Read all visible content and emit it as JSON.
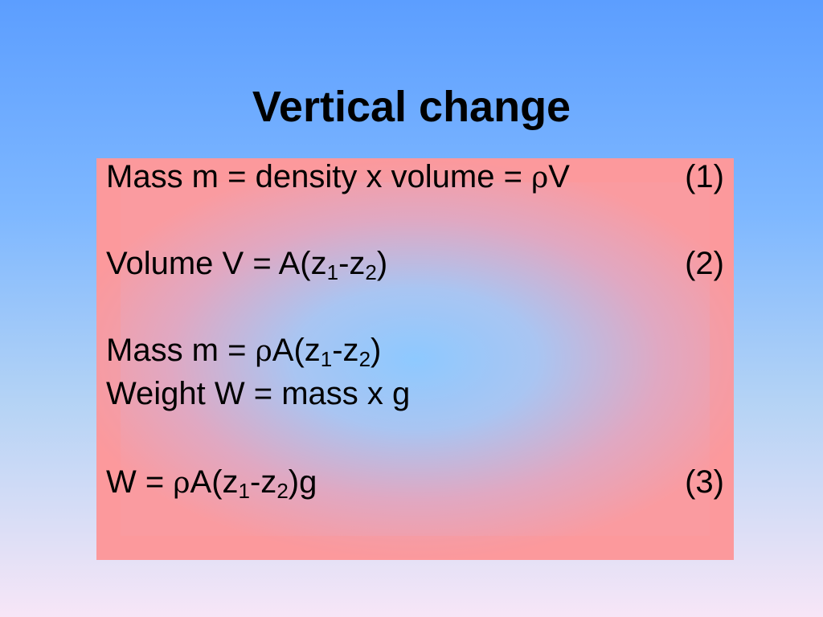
{
  "slide": {
    "title": "Vertical change"
  },
  "equations": {
    "eq1": {
      "prefix": "Mass m = density x volume = ",
      "rho": "ρ",
      "suffix": "V",
      "number": "(1)"
    },
    "eq2": {
      "prefix": "Volume V = A(z",
      "sub1": "1",
      "mid": "-z",
      "sub2": "2",
      "suffix": ")",
      "number": "(2)"
    },
    "eq_mass": {
      "prefix": "Mass m = ",
      "rho": "ρ",
      "a": "A(z",
      "sub1": "1",
      "mid": "-z",
      "sub2": "2",
      "suffix": ")"
    },
    "eq_weight": {
      "text": "Weight W = mass x g"
    },
    "eq3": {
      "prefix": "W = ",
      "rho": "ρ",
      "a": "A(z",
      "sub1": "1",
      "mid": "-z",
      "sub2": "2",
      "suffix": ")g",
      "number": "(3)"
    }
  },
  "colors": {
    "background_top": "#5c9eff",
    "background_bottom": "#f7e6f7",
    "box_edge": "#fa9ba0",
    "box_center": "#8ec9ff"
  }
}
